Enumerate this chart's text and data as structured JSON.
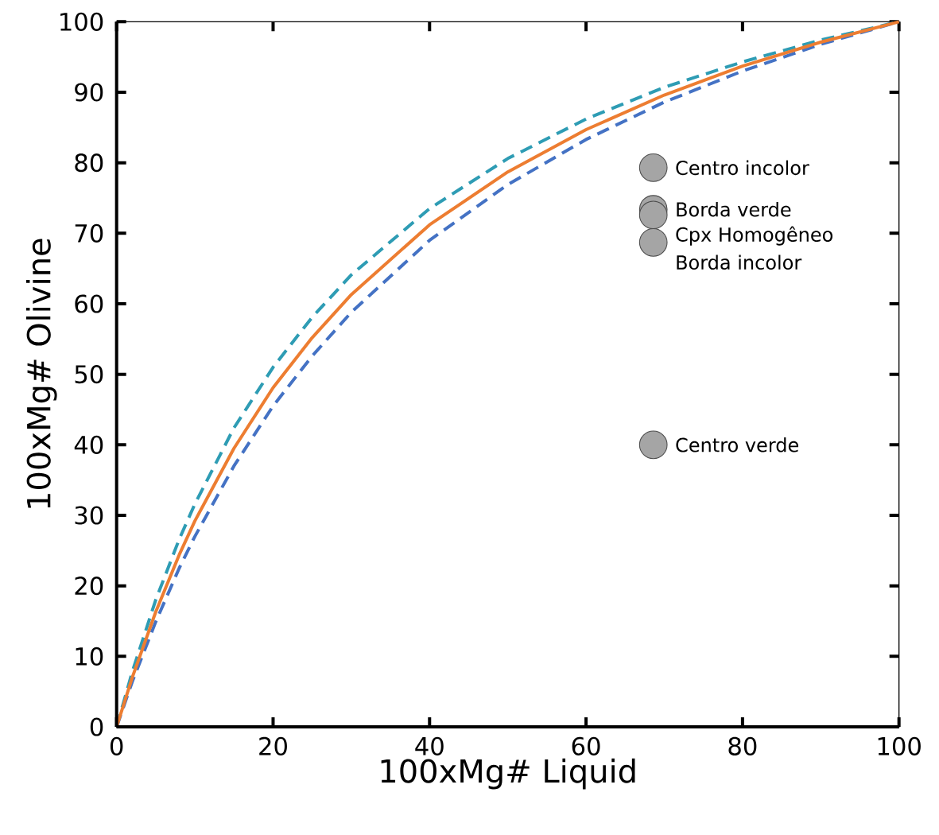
{
  "chart_data": {
    "type": "line",
    "xlabel": "100xMg# Liquid",
    "ylabel": "100xMg# Olivine",
    "xlim": [
      0,
      100
    ],
    "ylim": [
      0,
      100
    ],
    "xticks": [
      0,
      20,
      40,
      60,
      80,
      100
    ],
    "yticks": [
      0,
      10,
      20,
      30,
      40,
      50,
      60,
      70,
      80,
      90,
      100
    ],
    "grid": false,
    "series": [
      {
        "color": "#2e9cb4",
        "line_style": "dashed",
        "marker": "none",
        "x": [
          0,
          2,
          5,
          8,
          10,
          15,
          20,
          25,
          30,
          40,
          50,
          60,
          70,
          80,
          90,
          100
        ],
        "values": [
          0,
          7.8,
          18.0,
          26.6,
          31.6,
          42.4,
          51.0,
          58.1,
          64.1,
          73.5,
          80.6,
          86.2,
          90.7,
          94.3,
          97.4,
          100
        ]
      },
      {
        "color": "#4472c4",
        "line_style": "dashed",
        "marker": "none",
        "x": [
          0,
          2,
          5,
          8,
          10,
          15,
          20,
          25,
          30,
          40,
          50,
          60,
          70,
          80,
          90,
          100
        ],
        "values": [
          0,
          6.4,
          14.9,
          22.5,
          27.0,
          37.0,
          45.5,
          52.6,
          58.8,
          69.0,
          76.9,
          83.3,
          88.6,
          93.0,
          96.8,
          100
        ]
      },
      {
        "color": "#ed7d31",
        "line_style": "solid",
        "marker": "none",
        "x": [
          0,
          2,
          5,
          8,
          10,
          15,
          20,
          25,
          30,
          40,
          50,
          60,
          70,
          80,
          90,
          100
        ],
        "values": [
          0,
          7.0,
          16.3,
          24.4,
          29.2,
          39.5,
          48.1,
          55.2,
          61.3,
          71.2,
          78.7,
          84.7,
          89.6,
          93.7,
          97.1,
          100
        ]
      },
      {
        "type": "scatter",
        "color": "#a5a5a5",
        "marker": "circle",
        "x": [
          68.6,
          68.6,
          68.6,
          68.6,
          68.6
        ],
        "values": [
          79.3,
          73.4,
          72.6,
          68.7,
          40.0
        ],
        "value_labels": [
          "Centro incolor",
          "Borda verde",
          "Cpx Homogêneo",
          "Borda incolor",
          "Centro verde"
        ]
      }
    ]
  }
}
